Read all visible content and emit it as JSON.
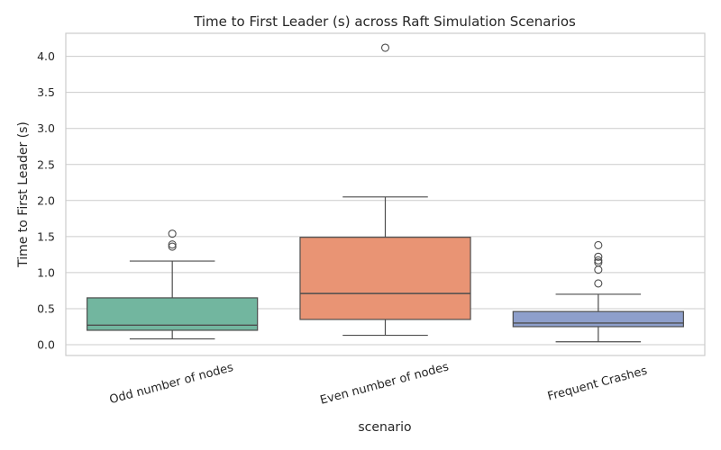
{
  "chart_data": {
    "type": "box",
    "title": "Time to First Leader (s) across Raft Simulation Scenarios",
    "xlabel": "scenario",
    "ylabel": "Time to First Leader (s)",
    "ylim": [
      -0.15,
      4.32
    ],
    "yticks": [
      "0.0",
      "0.5",
      "1.0",
      "1.5",
      "2.0",
      "2.5",
      "3.0",
      "3.5",
      "4.0"
    ],
    "grid": true,
    "categories": [
      "Odd number of nodes",
      "Even number of nodes",
      "Frequent Crashes"
    ],
    "boxes": [
      {
        "category": "Odd number of nodes",
        "color": "#72b69f",
        "whisker_low": 0.08,
        "q1": 0.2,
        "median": 0.27,
        "q3": 0.65,
        "whisker_high": 1.16,
        "outliers": [
          1.36,
          1.39,
          1.54
        ]
      },
      {
        "category": "Even number of nodes",
        "color": "#e99474",
        "whisker_low": 0.13,
        "q1": 0.35,
        "median": 0.71,
        "q3": 1.49,
        "whisker_high": 2.05,
        "outliers": [
          4.12
        ]
      },
      {
        "category": "Frequent Crashes",
        "color": "#8e9fcb",
        "whisker_low": 0.04,
        "q1": 0.25,
        "median": 0.3,
        "q3": 0.46,
        "whisker_high": 0.7,
        "outliers": [
          0.85,
          1.04,
          1.14,
          1.17,
          1.22,
          1.38
        ]
      }
    ]
  }
}
